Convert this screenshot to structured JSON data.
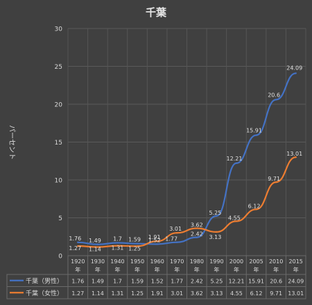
{
  "chart_data": {
    "type": "line",
    "title": "千葉",
    "ylabel": "パーセント",
    "xlabel": "",
    "ylim": [
      0,
      30
    ],
    "yticks": [
      "0",
      "5",
      "10",
      "15",
      "20",
      "25",
      "30"
    ],
    "grid": true,
    "categories": [
      [
        "1920",
        "年"
      ],
      [
        "1930",
        "年"
      ],
      [
        "1940",
        "年"
      ],
      [
        "1950",
        "年"
      ],
      [
        "1960",
        "年"
      ],
      [
        "1970",
        "年"
      ],
      [
        "1980",
        "年"
      ],
      [
        "1990",
        "年"
      ],
      [
        "2000",
        "年"
      ],
      [
        "2005",
        "年"
      ],
      [
        "2010",
        "年"
      ],
      [
        "2015",
        "年"
      ]
    ],
    "series": [
      {
        "name": "千葉（男性）",
        "color": "#4472c4",
        "values": [
          1.76,
          1.49,
          1.7,
          1.59,
          1.52,
          1.77,
          2.42,
          5.25,
          12.21,
          15.91,
          20.6,
          24.09
        ],
        "labels": [
          "1.76",
          "1.49",
          "1.7",
          "1.59",
          "1.52",
          "1.77",
          "2.42",
          "5.25",
          "12.21",
          "15.91",
          "20.6",
          "24.09"
        ]
      },
      {
        "name": "千葉（女性）",
        "color": "#ed7d31",
        "values": [
          1.27,
          1.14,
          1.31,
          1.25,
          1.91,
          3.01,
          3.62,
          3.13,
          4.55,
          6.12,
          9.71,
          13.01
        ],
        "labels": [
          "1.27",
          "1.14",
          "1.31",
          "1.25",
          "1.91",
          "3.01",
          "3.62",
          "3.13",
          "4.55",
          "6.12",
          "9.71",
          "13.01"
        ]
      }
    ],
    "legend": "data-table"
  }
}
